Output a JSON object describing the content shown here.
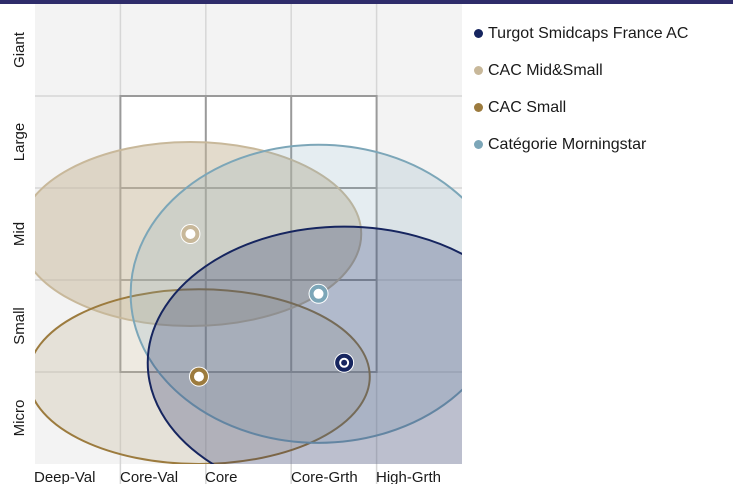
{
  "chart_data": {
    "type": "scatter",
    "title": "",
    "x_categories": [
      "Deep-Val",
      "Core-Val",
      "Core",
      "Core-Grth",
      "High-Grth"
    ],
    "y_categories": [
      "Micro",
      "Small",
      "Mid",
      "Large",
      "Giant"
    ],
    "grid": true,
    "legend_position": "right",
    "inner_box": {
      "x": [
        1,
        4
      ],
      "y": [
        1,
        4
      ]
    },
    "series": [
      {
        "name": "Turgot Smidcaps France AC",
        "color": "#16255f",
        "fill": "#16255f",
        "fill_opacity": 0.25,
        "center": [
          3.62,
          1.1
        ],
        "ellipse_radius": [
          2.3,
          1.48
        ]
      },
      {
        "name": "CAC Mid&Small",
        "color": "#c8b89a",
        "fill": "#c8b89a",
        "fill_opacity": 0.5,
        "center": [
          1.82,
          2.5
        ],
        "ellipse_radius": [
          2.0,
          1.0
        ]
      },
      {
        "name": "CAC Small",
        "color": "#9c7b3e",
        "fill": "#c8b89a",
        "fill_opacity": 0.3,
        "center": [
          1.92,
          0.95
        ],
        "ellipse_radius": [
          2.0,
          0.95
        ]
      },
      {
        "name": "Catégorie Morningstar",
        "color": "#7ca6b8",
        "fill": "#7ca6b8",
        "fill_opacity": 0.2,
        "center": [
          3.32,
          1.85
        ],
        "ellipse_radius": [
          2.2,
          1.62
        ]
      }
    ]
  },
  "legend": {
    "items": [
      {
        "label": "Turgot Smidcaps France AC",
        "color": "#16255f"
      },
      {
        "label": "CAC Mid&Small",
        "color": "#c8b89a"
      },
      {
        "label": "CAC Small",
        "color": "#9c7b3e"
      },
      {
        "label": "Catégorie Morningstar",
        "color": "#7ca6b8"
      }
    ]
  }
}
